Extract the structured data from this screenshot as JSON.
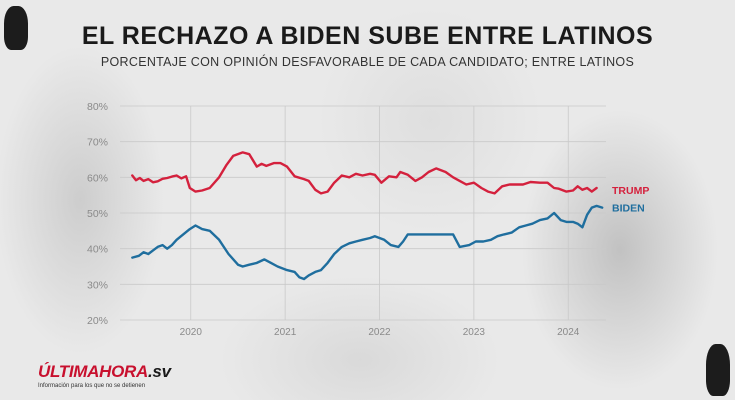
{
  "title": "EL RECHAZO A BIDEN SUBE ENTRE LATINOS",
  "subtitle": "PORCENTAJE CON OPINIÓN DESFAVORABLE DE CADA CANDIDATO; ENTRE LATINOS",
  "logo": {
    "main": "ÚLTIMAHORA",
    "suffix": ".sv",
    "tagline": "Información para los que no se detienen"
  },
  "colors": {
    "trump": "#d4213d",
    "biden": "#1f6e9e",
    "grid": "#c9c9c9",
    "tick": "#8a8a8a"
  },
  "chart_data": {
    "type": "line",
    "title": "EL RECHAZO A BIDEN SUBE ENTRE LATINOS",
    "subtitle": "PORCENTAJE CON OPINIÓN DESFAVORABLE DE CADA CANDIDATO; ENTRE LATINOS",
    "xlabel": "",
    "ylabel": "",
    "xlim": [
      2019.25,
      2024.4
    ],
    "ylim": [
      20,
      80
    ],
    "y_ticks": [
      "20%",
      "30%",
      "40%",
      "50%",
      "60%",
      "70%",
      "80%"
    ],
    "x_ticks": [
      "2020",
      "2021",
      "2022",
      "2023",
      "2024"
    ],
    "grid": true,
    "legend": "series labels at the right end of each line",
    "series": [
      {
        "name": "TRUMP",
        "color": "#d4213d",
        "x": [
          2019.38,
          2019.42,
          2019.46,
          2019.5,
          2019.55,
          2019.6,
          2019.65,
          2019.7,
          2019.75,
          2019.8,
          2019.85,
          2019.9,
          2019.95,
          2019.99,
          2020.05,
          2020.12,
          2020.2,
          2020.3,
          2020.38,
          2020.45,
          2020.55,
          2020.62,
          2020.7,
          2020.75,
          2020.8,
          2020.88,
          2020.95,
          2021.02,
          2021.1,
          2021.2,
          2021.25,
          2021.32,
          2021.38,
          2021.45,
          2021.52,
          2021.6,
          2021.68,
          2021.75,
          2021.82,
          2021.9,
          2021.95,
          2022.02,
          2022.1,
          2022.18,
          2022.22,
          2022.3,
          2022.38,
          2022.45,
          2022.52,
          2022.6,
          2022.7,
          2022.78,
          2022.85,
          2022.92,
          2023.0,
          2023.08,
          2023.15,
          2023.22,
          2023.3,
          2023.38,
          2023.45,
          2023.52,
          2023.6,
          2023.7,
          2023.78,
          2023.85,
          2023.9,
          2023.98,
          2024.05,
          2024.1,
          2024.15,
          2024.2,
          2024.25,
          2024.3
        ],
        "values": [
          60.5,
          59.2,
          59.8,
          59.0,
          59.5,
          58.6,
          58.9,
          59.6,
          59.8,
          60.2,
          60.5,
          59.7,
          60.3,
          57.0,
          56.0,
          56.3,
          57.0,
          60.0,
          63.5,
          66.0,
          67.0,
          66.5,
          63.0,
          63.8,
          63.2,
          64.0,
          64.0,
          63.0,
          60.3,
          59.5,
          59.0,
          56.5,
          55.5,
          56.0,
          58.5,
          60.5,
          60.0,
          61.0,
          60.5,
          61.0,
          60.7,
          58.5,
          60.3,
          60.0,
          61.5,
          60.7,
          59.0,
          60.0,
          61.5,
          62.5,
          61.5,
          60.0,
          59.0,
          58.0,
          58.5,
          57.0,
          56.0,
          55.5,
          57.5,
          58.0,
          58.0,
          58.0,
          58.7,
          58.5,
          58.5,
          57.0,
          56.8,
          56.0,
          56.3,
          57.5,
          56.5,
          57.0,
          56.0,
          57.0
        ]
      },
      {
        "name": "BIDEN",
        "color": "#1f6e9e",
        "x": [
          2019.38,
          2019.45,
          2019.5,
          2019.55,
          2019.6,
          2019.65,
          2019.7,
          2019.75,
          2019.8,
          2019.85,
          2019.92,
          2019.99,
          2020.05,
          2020.12,
          2020.2,
          2020.3,
          2020.4,
          2020.5,
          2020.55,
          2020.62,
          2020.7,
          2020.78,
          2020.85,
          2020.92,
          2021.02,
          2021.1,
          2021.15,
          2021.2,
          2021.25,
          2021.32,
          2021.38,
          2021.45,
          2021.52,
          2021.6,
          2021.68,
          2021.75,
          2021.82,
          2021.9,
          2021.95,
          2022.0,
          2022.05,
          2022.12,
          2022.2,
          2022.25,
          2022.3,
          2022.38,
          2022.45,
          2022.52,
          2022.6,
          2022.7,
          2022.78,
          2022.85,
          2022.95,
          2023.02,
          2023.1,
          2023.18,
          2023.25,
          2023.32,
          2023.4,
          2023.48,
          2023.55,
          2023.62,
          2023.7,
          2023.78,
          2023.85,
          2023.92,
          2023.98,
          2024.05,
          2024.1,
          2024.15,
          2024.2,
          2024.25,
          2024.3,
          2024.36
        ],
        "values": [
          37.5,
          38.0,
          39.0,
          38.5,
          39.5,
          40.5,
          41.0,
          40.0,
          41.0,
          42.5,
          44.0,
          45.5,
          46.5,
          45.5,
          45.0,
          42.5,
          38.5,
          35.5,
          35.0,
          35.5,
          36.0,
          37.0,
          36.0,
          35.0,
          34.0,
          33.5,
          32.0,
          31.5,
          32.5,
          33.5,
          34.0,
          36.0,
          38.5,
          40.5,
          41.5,
          42.0,
          42.5,
          43.0,
          43.5,
          43.0,
          42.5,
          41.0,
          40.5,
          42.0,
          44.0,
          44.0,
          44.0,
          44.0,
          44.0,
          44.0,
          44.0,
          40.5,
          41.0,
          42.0,
          42.0,
          42.5,
          43.5,
          44.0,
          44.5,
          46.0,
          46.5,
          47.0,
          48.0,
          48.5,
          50.0,
          48.0,
          47.5,
          47.5,
          47.0,
          46.0,
          49.5,
          51.5,
          52.0,
          51.5
        ]
      }
    ]
  }
}
